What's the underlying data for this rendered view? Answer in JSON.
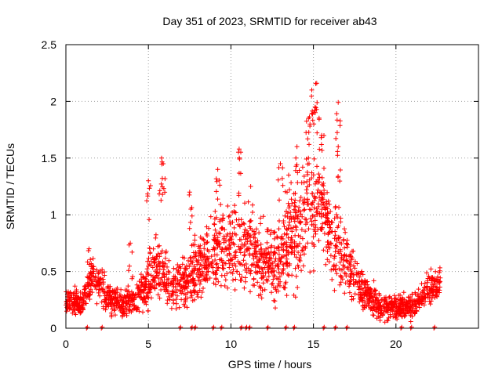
{
  "chart_data": {
    "type": "scatter",
    "title": "Day 351 of 2023, SRMTID for receiver ab43",
    "xlabel": "GPS time / hours",
    "ylabel": "SRMTID / TECUs",
    "xlim": [
      0,
      25
    ],
    "ylim": [
      0,
      2.5
    ],
    "x_ticks": [
      0,
      5,
      10,
      15,
      20
    ],
    "x_tick_labels": [
      "0",
      "5",
      "10",
      "15",
      "20"
    ],
    "y_ticks": [
      0,
      0.5,
      1,
      1.5,
      2,
      2.5
    ],
    "y_tick_labels": [
      "0",
      "0.5",
      "1",
      "1.5",
      "2",
      "2.5"
    ],
    "grid": true,
    "marker": "+",
    "series": [
      {
        "name": "SRMTID",
        "color": "#ff0000",
        "profile": [
          {
            "t": 0.0,
            "v": 0.25,
            "s": 0.1
          },
          {
            "t": 1.0,
            "v": 0.22,
            "s": 0.1
          },
          {
            "t": 1.5,
            "v": 0.45,
            "s": 0.15
          },
          {
            "t": 2.5,
            "v": 0.3,
            "s": 0.12
          },
          {
            "t": 3.5,
            "v": 0.2,
            "s": 0.1
          },
          {
            "t": 4.5,
            "v": 0.3,
            "s": 0.15
          },
          {
            "t": 5.5,
            "v": 0.55,
            "s": 0.25
          },
          {
            "t": 6.5,
            "v": 0.35,
            "s": 0.15
          },
          {
            "t": 7.5,
            "v": 0.45,
            "s": 0.2
          },
          {
            "t": 8.5,
            "v": 0.6,
            "s": 0.25
          },
          {
            "t": 9.5,
            "v": 0.75,
            "s": 0.3
          },
          {
            "t": 10.5,
            "v": 0.7,
            "s": 0.35
          },
          {
            "t": 11.5,
            "v": 0.6,
            "s": 0.25
          },
          {
            "t": 12.5,
            "v": 0.55,
            "s": 0.3
          },
          {
            "t": 13.5,
            "v": 0.75,
            "s": 0.35
          },
          {
            "t": 14.5,
            "v": 0.95,
            "s": 0.4
          },
          {
            "t": 15.2,
            "v": 1.15,
            "s": 0.4
          },
          {
            "t": 16.0,
            "v": 0.8,
            "s": 0.35
          },
          {
            "t": 17.0,
            "v": 0.55,
            "s": 0.25
          },
          {
            "t": 18.0,
            "v": 0.35,
            "s": 0.15
          },
          {
            "t": 19.0,
            "v": 0.2,
            "s": 0.1
          },
          {
            "t": 20.0,
            "v": 0.18,
            "s": 0.08
          },
          {
            "t": 21.0,
            "v": 0.2,
            "s": 0.1
          },
          {
            "t": 22.0,
            "v": 0.35,
            "s": 0.12
          },
          {
            "t": 22.7,
            "v": 0.4,
            "s": 0.1
          }
        ],
        "peaks": [
          [
            5.0,
            1.3
          ],
          [
            5.8,
            1.5
          ],
          [
            5.9,
            1.45
          ],
          [
            7.5,
            1.2
          ],
          [
            9.2,
            1.4
          ],
          [
            10.5,
            1.58
          ],
          [
            11.2,
            1.25
          ],
          [
            13.0,
            1.45
          ],
          [
            13.5,
            1.35
          ],
          [
            14.7,
            1.85
          ],
          [
            14.9,
            2.1
          ],
          [
            15.1,
            1.95
          ],
          [
            15.2,
            2.16
          ],
          [
            15.5,
            1.7
          ],
          [
            16.5,
            1.99
          ],
          [
            16.5,
            1.6
          ],
          [
            14.0,
            1.6
          ],
          [
            3.9,
            0.75
          ],
          [
            1.4,
            0.7
          ]
        ],
        "zeros": [
          1.25,
          2.15,
          6.9,
          7.6,
          7.8,
          8.9,
          9.4,
          10.6,
          10.9,
          11.1,
          12.2,
          13.3,
          13.8,
          15.6,
          16.3,
          17.0,
          20.3,
          20.9,
          22.3
        ],
        "range": [
          0.0,
          22.7
        ],
        "count": 2300
      }
    ]
  }
}
